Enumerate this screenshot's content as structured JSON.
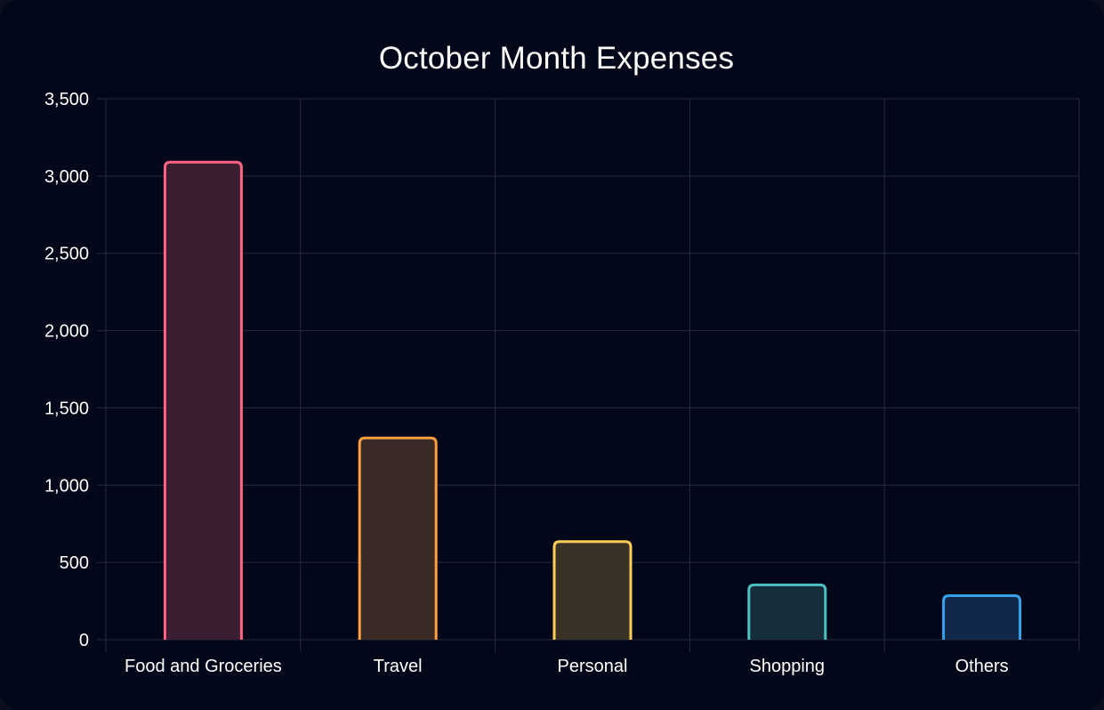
{
  "chart_data": {
    "type": "bar",
    "title": "October Month Expenses",
    "categories": [
      "Food and Groceries",
      "Travel",
      "Personal",
      "Shopping",
      "Others"
    ],
    "values": [
      3090,
      1305,
      635,
      355,
      285
    ],
    "ylim": [
      0,
      3500
    ],
    "yticks": [
      0,
      500,
      1000,
      1500,
      2000,
      2500,
      3000,
      3500
    ],
    "ytick_labels": [
      "0",
      "500",
      "1,000",
      "1,500",
      "2,000",
      "2,500",
      "3,000",
      "3,500"
    ],
    "xlabel": "",
    "ylabel": "",
    "grid": true,
    "legend": false,
    "colors": {
      "border": [
        "#ff6384",
        "#ff9f40",
        "#ffcd56",
        "#4bc0c0",
        "#36a2eb"
      ],
      "fill": [
        "#3b1e32",
        "#3a2b26",
        "#393226",
        "#162d3b",
        "#11284a"
      ],
      "grid": "#272b3b",
      "text": "#ffffff",
      "background": "#03071a"
    }
  }
}
